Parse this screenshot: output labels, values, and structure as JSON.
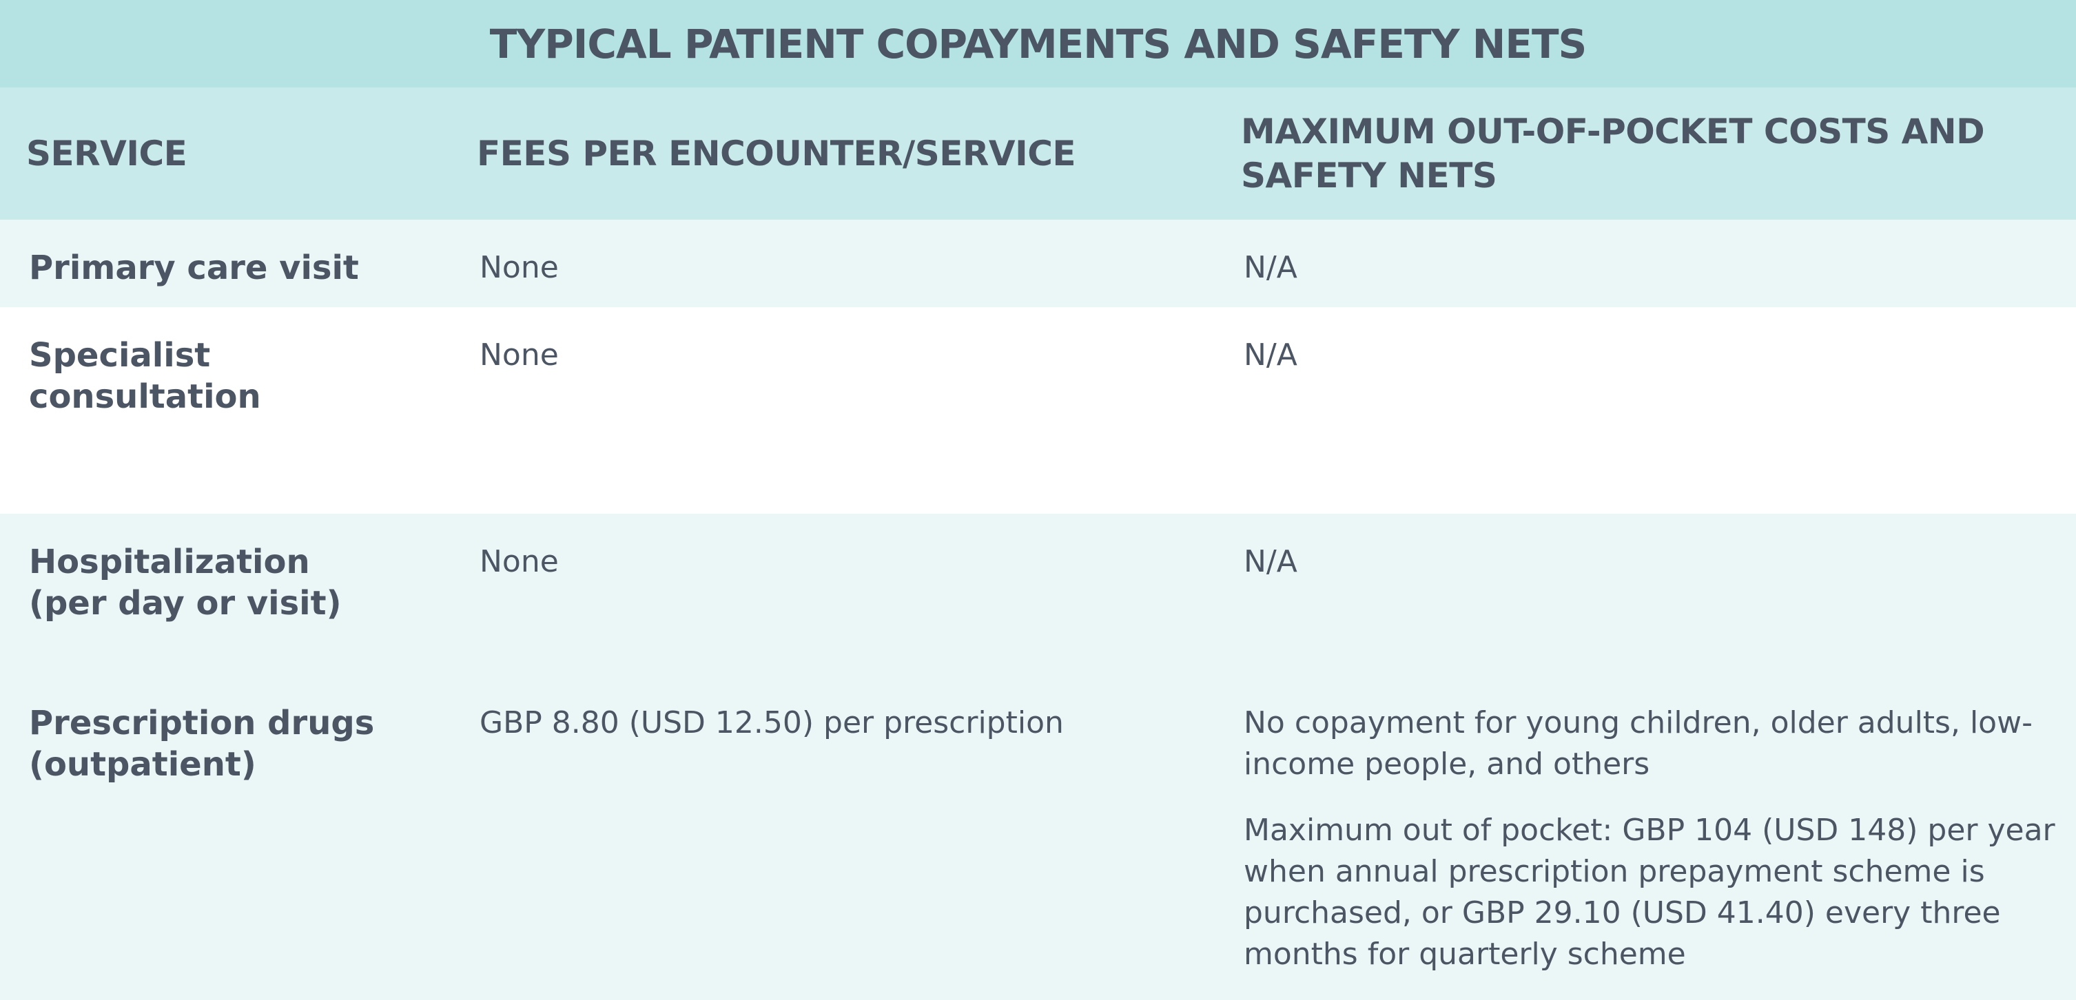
{
  "title": "TYPICAL PATIENT COPAYMENTS AND SAFETY NETS",
  "table": {
    "headers": [
      [
        "SERVICE"
      ],
      [
        "FEES PER ENCOUNTER/SERVICE"
      ],
      [
        "MAXIMUM OUT-OF-POCKET COSTS AND",
        "SAFETY NETS"
      ]
    ],
    "rows": [
      {
        "service": [
          "Primary care visit"
        ],
        "fees": "None",
        "max": [
          "N/A"
        ]
      },
      {
        "service": [
          "Specialist consultation"
        ],
        "fees": "None",
        "max": [
          "N/A"
        ]
      },
      {
        "service": [
          "Hospitalization",
          "(per day or visit)"
        ],
        "fees": "None",
        "max": [
          "N/A"
        ]
      },
      {
        "service": [
          "Prescription drugs",
          "(outpatient)"
        ],
        "fees": "GBP 8.80 (USD 12.50) per prescription",
        "max": [
          "No copayment for young children, older adults, low-income people, and others",
          "Maximum out of pocket: GBP 104 (USD 148) per year when annual prescription prepayment scheme is purchased, or GBP 29.10 (USD 41.40) every three months for quarterly scheme"
        ]
      }
    ]
  }
}
